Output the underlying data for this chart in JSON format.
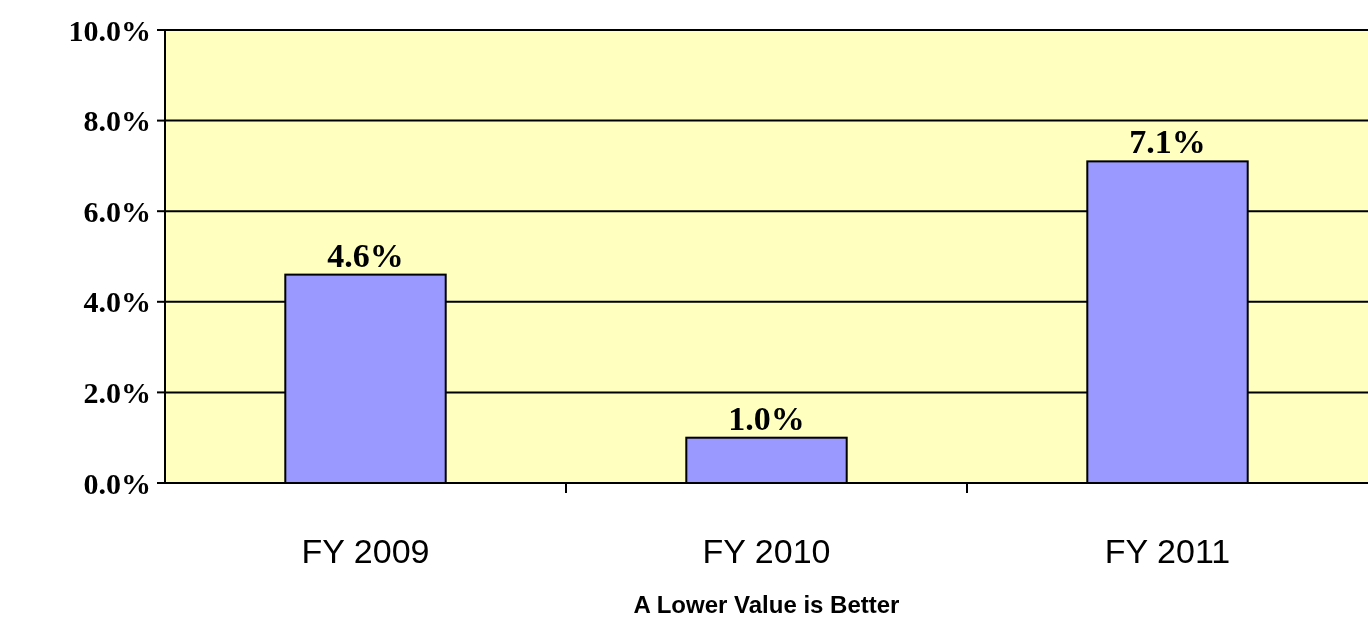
{
  "chart_data": {
    "type": "bar",
    "xlabel": "A Lower Value is Better",
    "categories": [
      "FY 2009",
      "FY 2010",
      "FY 2011"
    ],
    "values": [
      4.6,
      1.0,
      7.1
    ],
    "color": "#9999ff",
    "value_labels": [
      "4.6%",
      "1.0%",
      "7.1%"
    ],
    "ylim": [
      0,
      10
    ],
    "yticks": [
      {
        "value": 0,
        "label": "0.0%"
      },
      {
        "value": 2,
        "label": "2.0%"
      },
      {
        "value": 4,
        "label": "4.0%"
      },
      {
        "value": 6,
        "label": "6.0%"
      },
      {
        "value": 8,
        "label": "8.0%"
      },
      {
        "value": 10,
        "label": "10.0%"
      }
    ],
    "grid": "y"
  }
}
